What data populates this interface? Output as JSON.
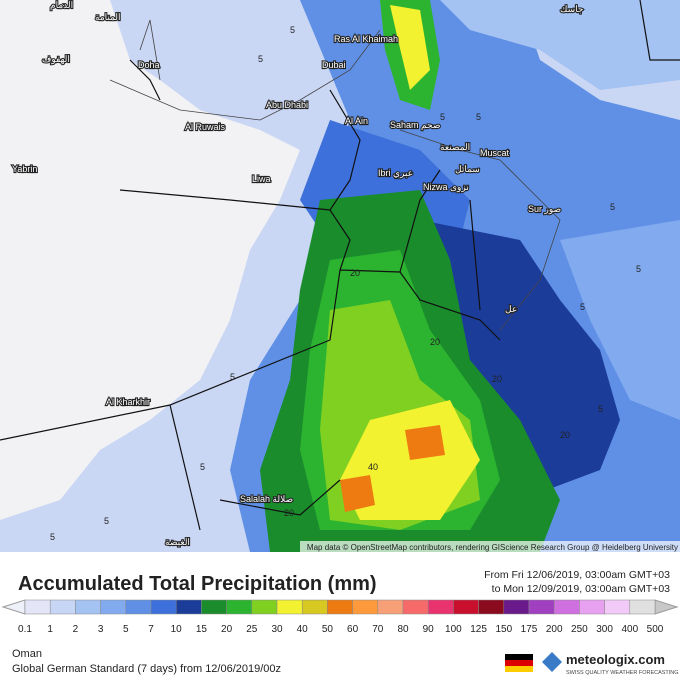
{
  "map": {
    "labels": [
      "الدمام",
      "المنامة",
      "الهفوف",
      "Doha",
      "Ras Al Khaimah",
      "Dubai",
      "Abu Dhabi",
      "Al Ruwais",
      "Al Ain",
      "Saham صحم",
      "المصنعة",
      "Muscat",
      "Ibri عبري",
      "سمائل",
      "Nizwa نزوى",
      "Sur صور",
      "Liwa",
      "Yabrin",
      "عل",
      "Al Kharkhir",
      "Salalah صلالة",
      "الغيضة",
      "جاسك"
    ],
    "contours": [
      "5",
      "5",
      "5",
      "5",
      "5",
      "5",
      "5",
      "5",
      "5",
      "5",
      "20",
      "20",
      "20",
      "20",
      "20",
      "40",
      "5",
      "5"
    ],
    "attribution": "Map data © OpenStreetMap contributors, rendering GIScience Research Group @ Heidelberg University"
  },
  "header": {
    "title": "Accumulated Total Precipitation (mm)",
    "from": "From Fri 12/06/2019, 03:00am GMT+03",
    "to": "to Mon 12/09/2019, 03:00am GMT+03"
  },
  "legend": {
    "ticks": [
      "0.1",
      "1",
      "2",
      "3",
      "5",
      "7",
      "10",
      "15",
      "20",
      "25",
      "30",
      "40",
      "50",
      "60",
      "70",
      "80",
      "90",
      "100",
      "125",
      "150",
      "175",
      "200",
      "250",
      "300",
      "400",
      "500"
    ],
    "colors": [
      "#e4e6f8",
      "#c8d6f6",
      "#a4c2f2",
      "#82aaee",
      "#5f90e6",
      "#3d70da",
      "#1c3c9a",
      "#1a8c2c",
      "#2cb430",
      "#80d022",
      "#f2f230",
      "#d8c822",
      "#ee7a12",
      "#ff9a3c",
      "#f7a078",
      "#f76a6a",
      "#e8336e",
      "#c8102e",
      "#8a0a1e",
      "#6a1a8a",
      "#a040c0",
      "#d070e0",
      "#e8a0f0",
      "#f2caf8",
      "#e0e0e0"
    ],
    "under": "#eef0fa",
    "over": "#c8c8c8"
  },
  "footer": {
    "region": "Oman",
    "model": "Global German Standard (7 days) from 12/06/2019/00z",
    "brand": "meteologix.com",
    "tagline": "SWISS QUALITY WEATHER FORECASTING"
  }
}
